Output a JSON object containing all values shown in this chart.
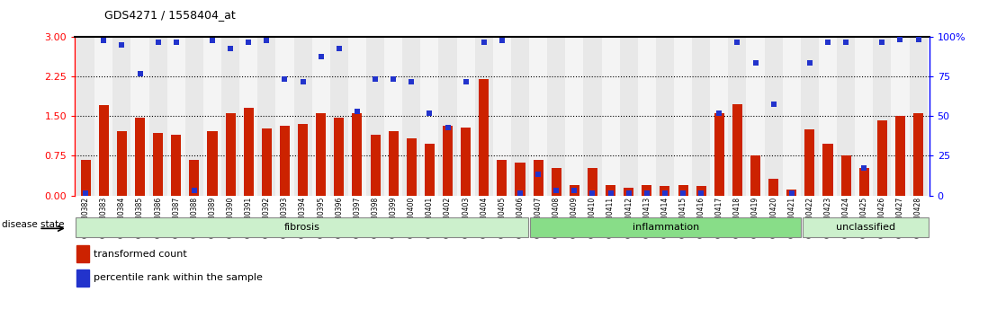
{
  "title": "GDS4271 / 1558404_at",
  "samples": [
    "GSM380382",
    "GSM380383",
    "GSM380384",
    "GSM380385",
    "GSM380386",
    "GSM380387",
    "GSM380388",
    "GSM380389",
    "GSM380390",
    "GSM380391",
    "GSM380392",
    "GSM380393",
    "GSM380394",
    "GSM380395",
    "GSM380396",
    "GSM380397",
    "GSM380398",
    "GSM380399",
    "GSM380400",
    "GSM380401",
    "GSM380402",
    "GSM380403",
    "GSM380404",
    "GSM380405",
    "GSM380406",
    "GSM380407",
    "GSM380408",
    "GSM380409",
    "GSM380410",
    "GSM380411",
    "GSM380412",
    "GSM380413",
    "GSM380414",
    "GSM380415",
    "GSM380416",
    "GSM380417",
    "GSM380418",
    "GSM380419",
    "GSM380420",
    "GSM380421",
    "GSM380422",
    "GSM380423",
    "GSM380424",
    "GSM380425",
    "GSM380426",
    "GSM380427",
    "GSM380428"
  ],
  "bar_values": [
    0.68,
    1.7,
    1.22,
    1.47,
    1.18,
    1.15,
    0.68,
    1.22,
    1.55,
    1.65,
    1.27,
    1.32,
    1.35,
    1.55,
    1.47,
    1.55,
    1.15,
    1.22,
    1.08,
    0.98,
    1.32,
    1.28,
    2.2,
    0.68,
    0.62,
    0.68,
    0.52,
    0.2,
    0.52,
    0.2,
    0.15,
    0.2,
    0.18,
    0.2,
    0.18,
    1.55,
    1.73,
    0.75,
    0.32,
    0.12,
    1.25,
    0.98,
    0.75,
    0.52,
    1.42,
    1.5,
    1.55
  ],
  "scatter_values": [
    0.05,
    2.93,
    2.85,
    2.3,
    2.9,
    2.9,
    0.1,
    2.93,
    2.78,
    2.9,
    2.93,
    2.2,
    2.15,
    2.62,
    2.78,
    1.58,
    2.2,
    2.2,
    2.15,
    1.55,
    1.28,
    2.15,
    2.9,
    2.93,
    0.05,
    0.4,
    0.1,
    0.1,
    0.05,
    0.05,
    0.05,
    0.05,
    0.05,
    0.05,
    0.05,
    1.55,
    2.9,
    2.5,
    1.73,
    0.05,
    2.5,
    2.9,
    2.9,
    0.52,
    2.9,
    2.95,
    2.95
  ],
  "group_labels": [
    "fibrosis",
    "inflammation",
    "unclassified"
  ],
  "group_ranges": [
    [
      0,
      25
    ],
    [
      25,
      40
    ],
    [
      40,
      47
    ]
  ],
  "group_colors": [
    "#ccf0cc",
    "#88dd88",
    "#ccf0cc"
  ],
  "group_edge_colors": [
    "#888888",
    "#888888",
    "#888888"
  ],
  "bar_color": "#cc2200",
  "scatter_color": "#2233cc",
  "ylim_left": [
    0,
    3.0
  ],
  "yticks_left": [
    0,
    0.75,
    1.5,
    2.25,
    3.0
  ],
  "yticks_right": [
    0,
    25,
    50,
    75,
    100
  ],
  "hlines": [
    0.75,
    1.5,
    2.25
  ],
  "legend_items": [
    "transformed count",
    "percentile rank within the sample"
  ],
  "disease_state_label": "disease state"
}
